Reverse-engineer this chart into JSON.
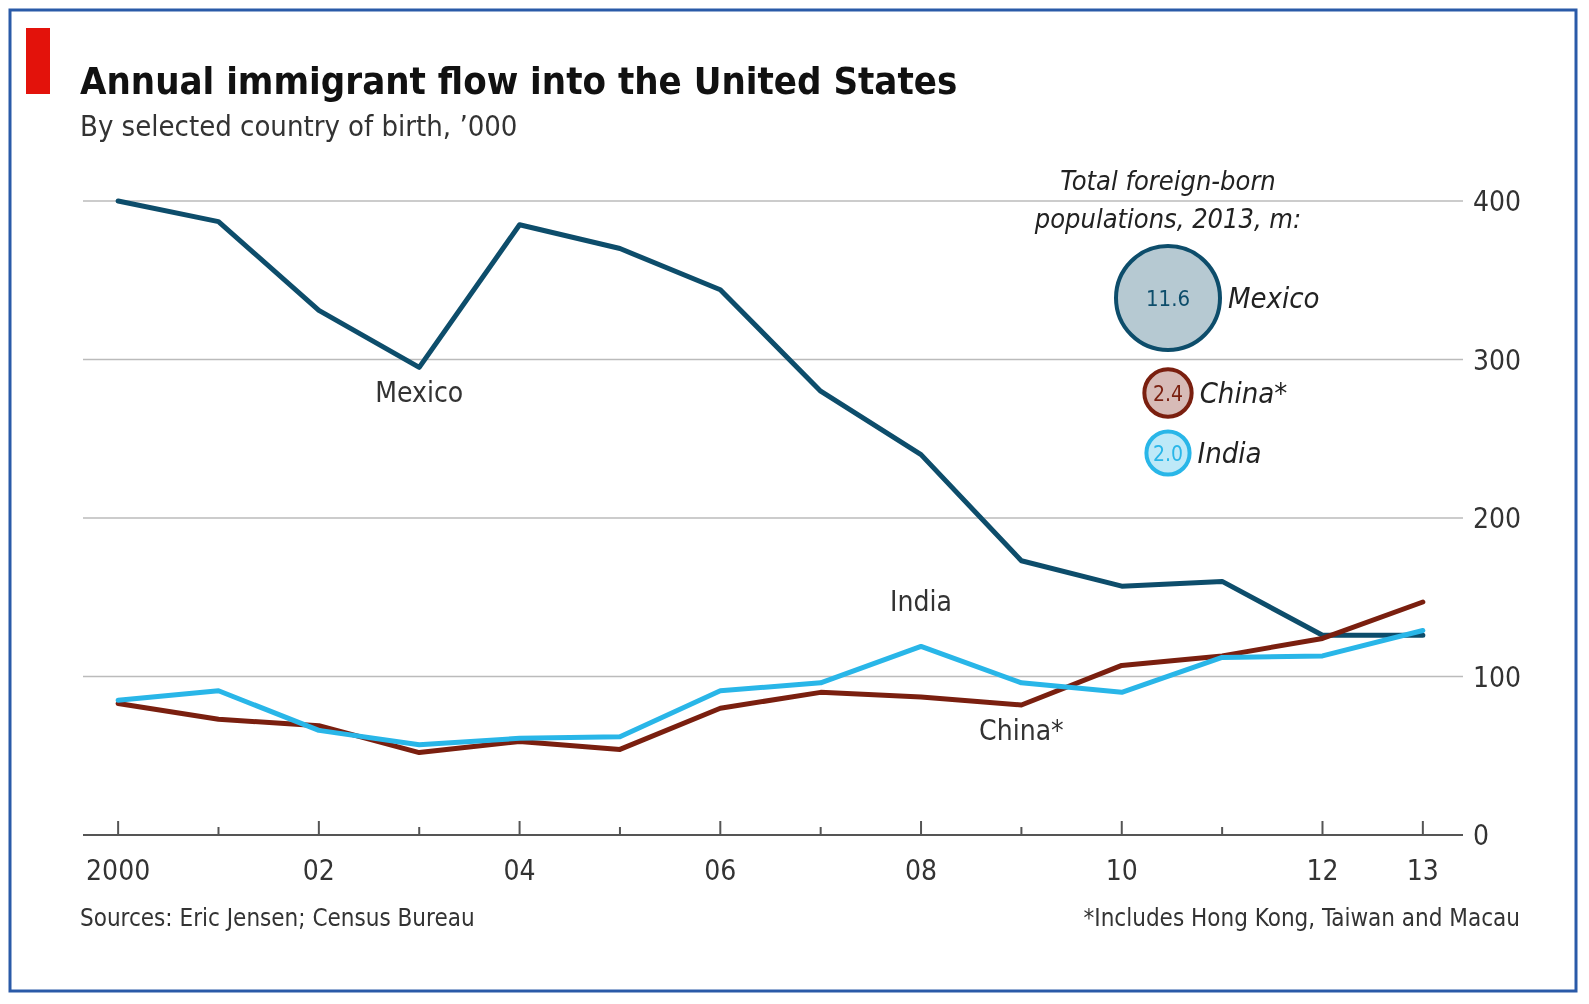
{
  "chart_data": {
    "type": "line",
    "title": "Annual immigrant flow into the United States",
    "subtitle": "By selected country of birth, ’000",
    "x": [
      2000,
      2001,
      2002,
      2003,
      2004,
      2005,
      2006,
      2007,
      2008,
      2009,
      2010,
      2011,
      2012,
      2013
    ],
    "series": [
      {
        "name": "Mexico",
        "color": "#0d4d6b",
        "values": [
          400,
          387,
          331,
          295,
          385,
          370,
          344,
          280,
          240,
          173,
          157,
          160,
          126,
          126
        ]
      },
      {
        "name": "China*",
        "color": "#7a1f0f",
        "values": [
          83,
          73,
          69,
          52,
          59,
          54,
          80,
          90,
          87,
          82,
          107,
          113,
          124,
          147
        ]
      },
      {
        "name": "India",
        "color": "#29b6e8",
        "values": [
          85,
          91,
          66,
          57,
          61,
          62,
          91,
          96,
          119,
          96,
          90,
          112,
          113,
          129
        ]
      }
    ],
    "xlim": [
      1999.65,
      2013.4
    ],
    "xticks": [
      {
        "value": 2000,
        "label": "2000"
      },
      {
        "value": 2001,
        "label": null
      },
      {
        "value": 2002,
        "label": "02"
      },
      {
        "value": 2003,
        "label": null
      },
      {
        "value": 2004,
        "label": "04"
      },
      {
        "value": 2005,
        "label": null
      },
      {
        "value": 2006,
        "label": "06"
      },
      {
        "value": 2007,
        "label": null
      },
      {
        "value": 2008,
        "label": "08"
      },
      {
        "value": 2009,
        "label": null
      },
      {
        "value": 2010,
        "label": "10"
      },
      {
        "value": 2011,
        "label": null
      },
      {
        "value": 2012,
        "label": "12"
      },
      {
        "value": 2013,
        "label": "13"
      }
    ],
    "ylim": [
      0,
      400
    ],
    "yticks": [
      0,
      100,
      200,
      300,
      400
    ],
    "grid": "y",
    "legend": "top right",
    "marker": "none",
    "line_style": "solid",
    "annotations": [
      "Total foreign-born populations, 2013, m:",
      "11.6",
      "2.4",
      "2.0",
      "Sources: Eric Jensen; Census Bureau",
      "*Includes Hong Kong, Taiwan and Macau"
    ]
  }
}
